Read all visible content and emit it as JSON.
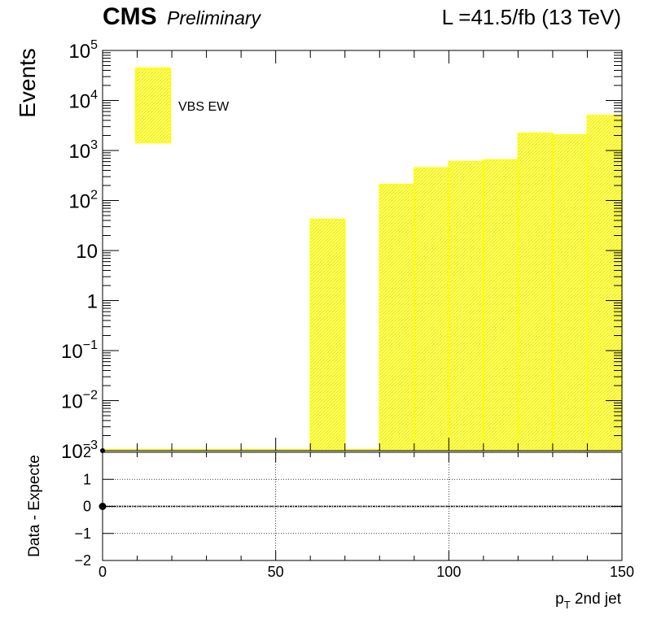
{
  "header": {
    "experiment": "CMS",
    "status": "Preliminary",
    "lumi": "L =41.5/fb (13 TeV)"
  },
  "chart_data": [
    {
      "type": "bar",
      "panel": "main",
      "scale": "log",
      "ylabel": "Events",
      "xlim": [
        0,
        150
      ],
      "ylim": [
        0.001,
        100000
      ],
      "y_ticks": [
        {
          "value": 100000,
          "base": "10",
          "exp": "5"
        },
        {
          "value": 10000,
          "base": "10",
          "exp": "4"
        },
        {
          "value": 1000,
          "base": "10",
          "exp": "3"
        },
        {
          "value": 100,
          "base": "10",
          "exp": "2"
        },
        {
          "value": 10,
          "base": "10",
          "exp": ""
        },
        {
          "value": 1,
          "base": "1",
          "exp": ""
        },
        {
          "value": 0.1,
          "base": "10",
          "exp": "−1"
        },
        {
          "value": 0.01,
          "base": "10",
          "exp": "−2"
        },
        {
          "value": 0.001,
          "base": "10",
          "exp": "−3"
        }
      ],
      "series": [
        {
          "name": "VBS EW",
          "color": "#ffff00",
          "edges": [
            0,
            10,
            20,
            30,
            40,
            50,
            60,
            70,
            80,
            90,
            100,
            110,
            120,
            130,
            140,
            150
          ],
          "values": [
            0,
            0,
            0,
            0,
            0,
            0,
            42,
            0,
            210,
            450,
            600,
            650,
            2200,
            2050,
            5000
          ]
        }
      ],
      "legend": {
        "position": "top-left",
        "entries": [
          "VBS EW"
        ]
      },
      "grid": false
    },
    {
      "type": "scatter",
      "panel": "ratio",
      "ylabel": "Data - Expecte",
      "xlabel_main": "p",
      "xlabel_sub": "T",
      "xlabel_rest": " 2nd jet",
      "xlim": [
        0,
        150
      ],
      "ylim": [
        -2,
        2
      ],
      "x_ticks": [
        0,
        50,
        100,
        150
      ],
      "y_ticks": [
        "−2",
        "−1",
        "0",
        "1",
        "2"
      ],
      "grid": true,
      "points": [
        {
          "x": 0,
          "y": 0
        }
      ],
      "reference_line": 0
    }
  ],
  "colors": {
    "fill": "#ffff00",
    "axis": "#000000",
    "grid": "#000000"
  }
}
